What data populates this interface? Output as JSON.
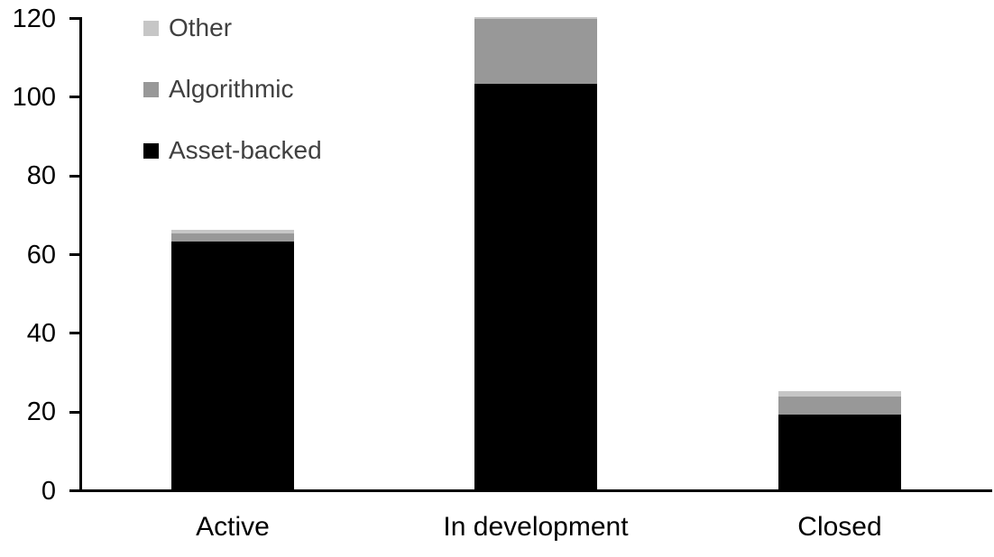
{
  "chart_data": {
    "type": "bar",
    "stacked": true,
    "title": "",
    "xlabel": "",
    "ylabel": "",
    "categories": [
      "Active",
      "In development",
      "Closed"
    ],
    "series": [
      {
        "name": "Asset-backed",
        "color": "#000000",
        "values": [
          63,
          103,
          19
        ]
      },
      {
        "name": "Algorithmic",
        "color": "#989898",
        "values": [
          2,
          16.5,
          4.5
        ]
      },
      {
        "name": "Other",
        "color": "#c6c6c6",
        "values": [
          1,
          0.5,
          1.5
        ]
      }
    ],
    "totals": [
      66,
      120,
      25
    ],
    "ylim": [
      0,
      120
    ],
    "yticks": [
      0,
      20,
      40,
      60,
      80,
      100,
      120
    ],
    "grid": false,
    "legend_position": "top-left",
    "legend": {
      "items": [
        {
          "label": "Other",
          "color": "#c6c6c6"
        },
        {
          "label": "Algorithmic",
          "color": "#989898"
        },
        {
          "label": "Asset-backed",
          "color": "#000000"
        }
      ]
    },
    "colors": {
      "axis": "#000000",
      "axis_text": "#000000",
      "legend_text": "#404040",
      "background": "#ffffff"
    }
  }
}
